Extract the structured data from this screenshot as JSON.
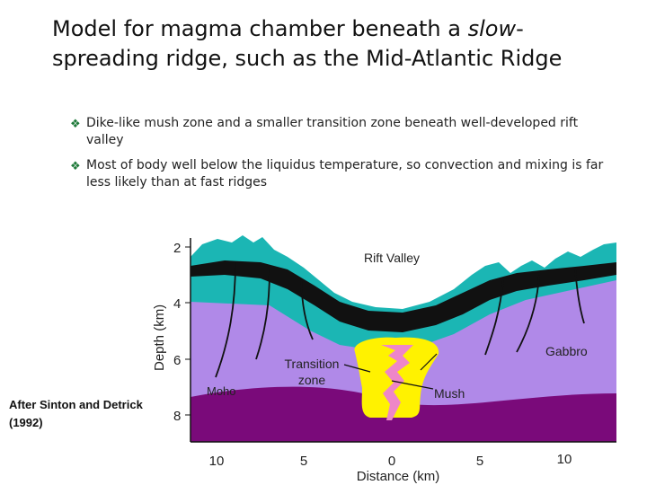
{
  "slide": {
    "title_before": "Model for magma chamber beneath a ",
    "title_em": "slow",
    "title_after": "-spreading ridge, such as the Mid-Atlantic Ridge"
  },
  "bullets": [
    {
      "icon": "diamond-bullet",
      "text": "Dike-like mush zone and a smaller transition zone beneath well-developed rift valley"
    },
    {
      "icon": "diamond-bullet",
      "text": "Most of body well below the liquidus temperature, so convection and mixing is far less likely than at fast ridges"
    }
  ],
  "credit": "After Sinton and Detrick (1992)",
  "diagram": {
    "labels": {
      "rift_valley": "Rift Valley",
      "gabbro": "Gabbro",
      "transition_zone_line1": "Transition",
      "transition_zone_line2": "zone",
      "mush": "Mush",
      "moho": "Moho"
    },
    "y_axis": {
      "title": "Depth (km)",
      "ticks": [
        "2",
        "4",
        "6",
        "8"
      ]
    },
    "x_axis": {
      "title": "Distance (km)",
      "ticks": [
        "10",
        "5",
        "0",
        "5",
        "10"
      ]
    },
    "colors": {
      "upper_crust_teal": "#1bb6b4",
      "gabbro_lavender": "#b089e8",
      "mantle_purple": "#7a0a7a",
      "mush_yellow": "#fff200",
      "transition_pink": "#ee86c8",
      "dike_black": "#111111"
    }
  }
}
